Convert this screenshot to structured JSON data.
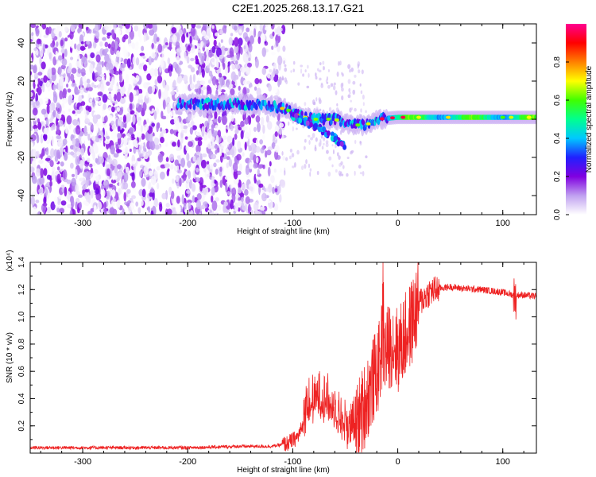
{
  "title": "C2E1.2025.268.13.17.G21",
  "chart_data": [
    {
      "type": "heatmap",
      "xlabel": "Height of straight line (km)",
      "ylabel": "Frequency (Hz)",
      "xlim": [
        -350,
        132
      ],
      "ylim": [
        -50,
        50
      ],
      "xticks": [
        -300,
        -200,
        -100,
        0,
        100
      ],
      "yticks": [
        -40,
        -20,
        0,
        20,
        40
      ],
      "colorbar": {
        "label": "Normalized spectral amplitude",
        "range": [
          0,
          1
        ],
        "ticks": [
          "0.0",
          "0.2",
          "0.4",
          "0.6",
          "0.8"
        ],
        "colors": [
          "#ffffff",
          "#c0a0f0",
          "#8000e0",
          "#2020ff",
          "#00c8ff",
          "#00ff90",
          "#40ff00",
          "#ffff00",
          "#ff8000",
          "#ff0000",
          "#ff0090"
        ]
      },
      "noise_region": {
        "x": [
          -350,
          -108
        ],
        "freq": [
          -50,
          50
        ]
      },
      "signal_trace": [
        {
          "x": -210,
          "freq": 8
        },
        {
          "x": -180,
          "freq": 8
        },
        {
          "x": -150,
          "freq": 8
        },
        {
          "x": -120,
          "freq": 7
        },
        {
          "x": -105,
          "freq": 5
        },
        {
          "x": -95,
          "freq": 2
        },
        {
          "x": -80,
          "freq": 0
        },
        {
          "x": -60,
          "freq": 0
        },
        {
          "x": -45,
          "freq": -3
        },
        {
          "x": -30,
          "freq": -3
        },
        {
          "x": -20,
          "freq": 0
        },
        {
          "x": 0,
          "freq": 1
        },
        {
          "x": 50,
          "freq": 1
        },
        {
          "x": 100,
          "freq": 1
        },
        {
          "x": 132,
          "freq": 1
        }
      ],
      "descending_branch": [
        {
          "x": -100,
          "freq": 2
        },
        {
          "x": -85,
          "freq": -2
        },
        {
          "x": -70,
          "freq": -6
        },
        {
          "x": -60,
          "freq": -10
        },
        {
          "x": -50,
          "freq": -14
        }
      ]
    },
    {
      "type": "line",
      "xlabel": "Height of straight line (km)",
      "ylabel": "SNR (10 * v/v)",
      "y_multiplier": "(x10⁴)",
      "xlim": [
        -350,
        132
      ],
      "ylim": [
        0,
        1.4
      ],
      "xticks": [
        -300,
        -200,
        -100,
        0,
        100
      ],
      "yticks": [
        "0.2",
        "0.4",
        "0.6",
        "0.8",
        "1.0",
        "1.2",
        "1.4"
      ],
      "series": [
        {
          "color": "#ee2222",
          "x": [
            -350,
            -300,
            -250,
            -200,
            -150,
            -120,
            -105,
            -95,
            -85,
            -75,
            -65,
            -55,
            -45,
            -35,
            -25,
            -15,
            -5,
            0,
            10,
            20,
            30,
            40,
            50,
            60,
            80,
            100,
            110,
            120,
            132
          ],
          "y": [
            0.04,
            0.04,
            0.04,
            0.04,
            0.05,
            0.05,
            0.07,
            0.12,
            0.3,
            0.35,
            0.32,
            0.22,
            0.1,
            0.28,
            0.5,
            0.7,
            0.82,
            0.75,
            0.9,
            1.1,
            1.18,
            1.21,
            1.22,
            1.21,
            1.2,
            1.18,
            1.16,
            1.16,
            1.15
          ]
        }
      ]
    }
  ]
}
